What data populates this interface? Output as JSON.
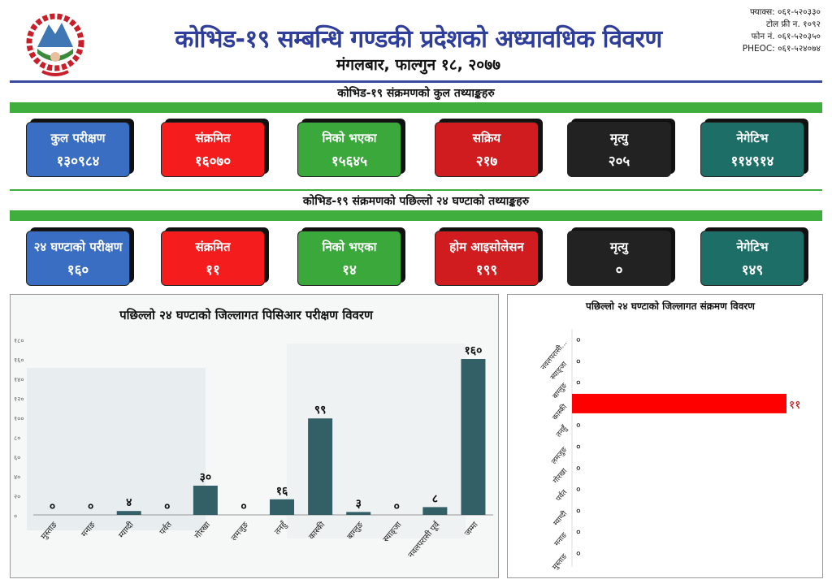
{
  "header": {
    "title": "कोभिड-१९ सम्बन्धि गण्डकी प्रदेशको अध्यावधिक विवरण",
    "date": "मंगलबार, फाल्गुन १८, २०७७",
    "contact": [
      "फ्याक्स: ०६१-५२०३३०",
      "टोल फ्री न. १०९२",
      "फोन नं. ०६१-५२०३५०",
      "PHEOC: ०६१-५२४०७४"
    ]
  },
  "section1": {
    "title": "कोभिड-१९ संक्रमणको कुल तथ्याङ्कहरु",
    "cards": [
      {
        "label": "कुल परीक्षण",
        "value": "१३०९८४",
        "color": "#3a6ec2"
      },
      {
        "label": "संक्रमित",
        "value": "१६०७०",
        "color": "#f41c1c"
      },
      {
        "label": "निको भएका",
        "value": "१५६४५",
        "color": "#3aa83a"
      },
      {
        "label": "सक्रिय",
        "value": "२१७",
        "color": "#d01c1f"
      },
      {
        "label": "मृत्यु",
        "value": "२०५",
        "color": "#222222"
      },
      {
        "label": "नेगेटिभ",
        "value": "११४९१४",
        "color": "#1e6e68"
      }
    ]
  },
  "section2": {
    "title": "कोभिड-१९ संक्रमणको पछिल्लो २४ घण्टाको तथ्याङ्कहरु",
    "cards": [
      {
        "label": "२४ घण्टाको परीक्षण",
        "value": "१६०",
        "color": "#3a6ec2"
      },
      {
        "label": "संक्रमित",
        "value": "११",
        "color": "#f41c1c"
      },
      {
        "label": "निको भएका",
        "value": "१४",
        "color": "#3aa83a"
      },
      {
        "label": "होम आइसोलेसन",
        "value": "१९९",
        "color": "#d01c1f"
      },
      {
        "label": "मृत्यु",
        "value": "०",
        "color": "#222222"
      },
      {
        "label": "नेगेटिभ",
        "value": "१४९",
        "color": "#1e6e68"
      }
    ]
  },
  "chart_data": [
    {
      "type": "bar",
      "title": "पछिल्लो २४ घण्टाको जिल्लागत पिसिआर परीक्षण विवरण",
      "categories": [
        "मुस्ताङ",
        "मनाङ",
        "म्याग्दी",
        "पर्वत",
        "गोरखा",
        "लमजुङ",
        "तनहुँ",
        "कास्की",
        "बाग्लुङ",
        "स्याङ्जा",
        "नवलपरासी पूर्व",
        "जम्मा"
      ],
      "values": [
        0,
        0,
        4,
        0,
        30,
        0,
        16,
        99,
        3,
        0,
        8,
        160
      ],
      "value_labels": [
        "०",
        "०",
        "४",
        "०",
        "३०",
        "०",
        "१६",
        "९९",
        "३",
        "०",
        "८",
        "१६०"
      ],
      "yticks": [
        "०",
        "२०",
        "४०",
        "६०",
        "८०",
        "१००",
        "१२०",
        "१४०",
        "१६०",
        "१८०"
      ],
      "ylim": [
        0,
        180
      ],
      "color": "#335f66"
    },
    {
      "type": "bar",
      "orientation": "horizontal",
      "title": "पछिल्लो २४ घण्टाको जिल्लागत संक्रमण विवरण",
      "categories": [
        "नवलपरासी...",
        "स्याङ्जा",
        "बाग्लुङ",
        "कास्की",
        "तनहुँ",
        "लमजुङ",
        "गोरखा",
        "पर्वत",
        "म्याग्दी",
        "मनाङ",
        "मुस्ताङ"
      ],
      "values": [
        0,
        0,
        0,
        11,
        0,
        0,
        0,
        0,
        0,
        0,
        0
      ],
      "value_labels": [
        "०",
        "०",
        "०",
        "११",
        "०",
        "०",
        "०",
        "०",
        "०",
        "०",
        "०"
      ],
      "color": "#ff0000"
    }
  ]
}
